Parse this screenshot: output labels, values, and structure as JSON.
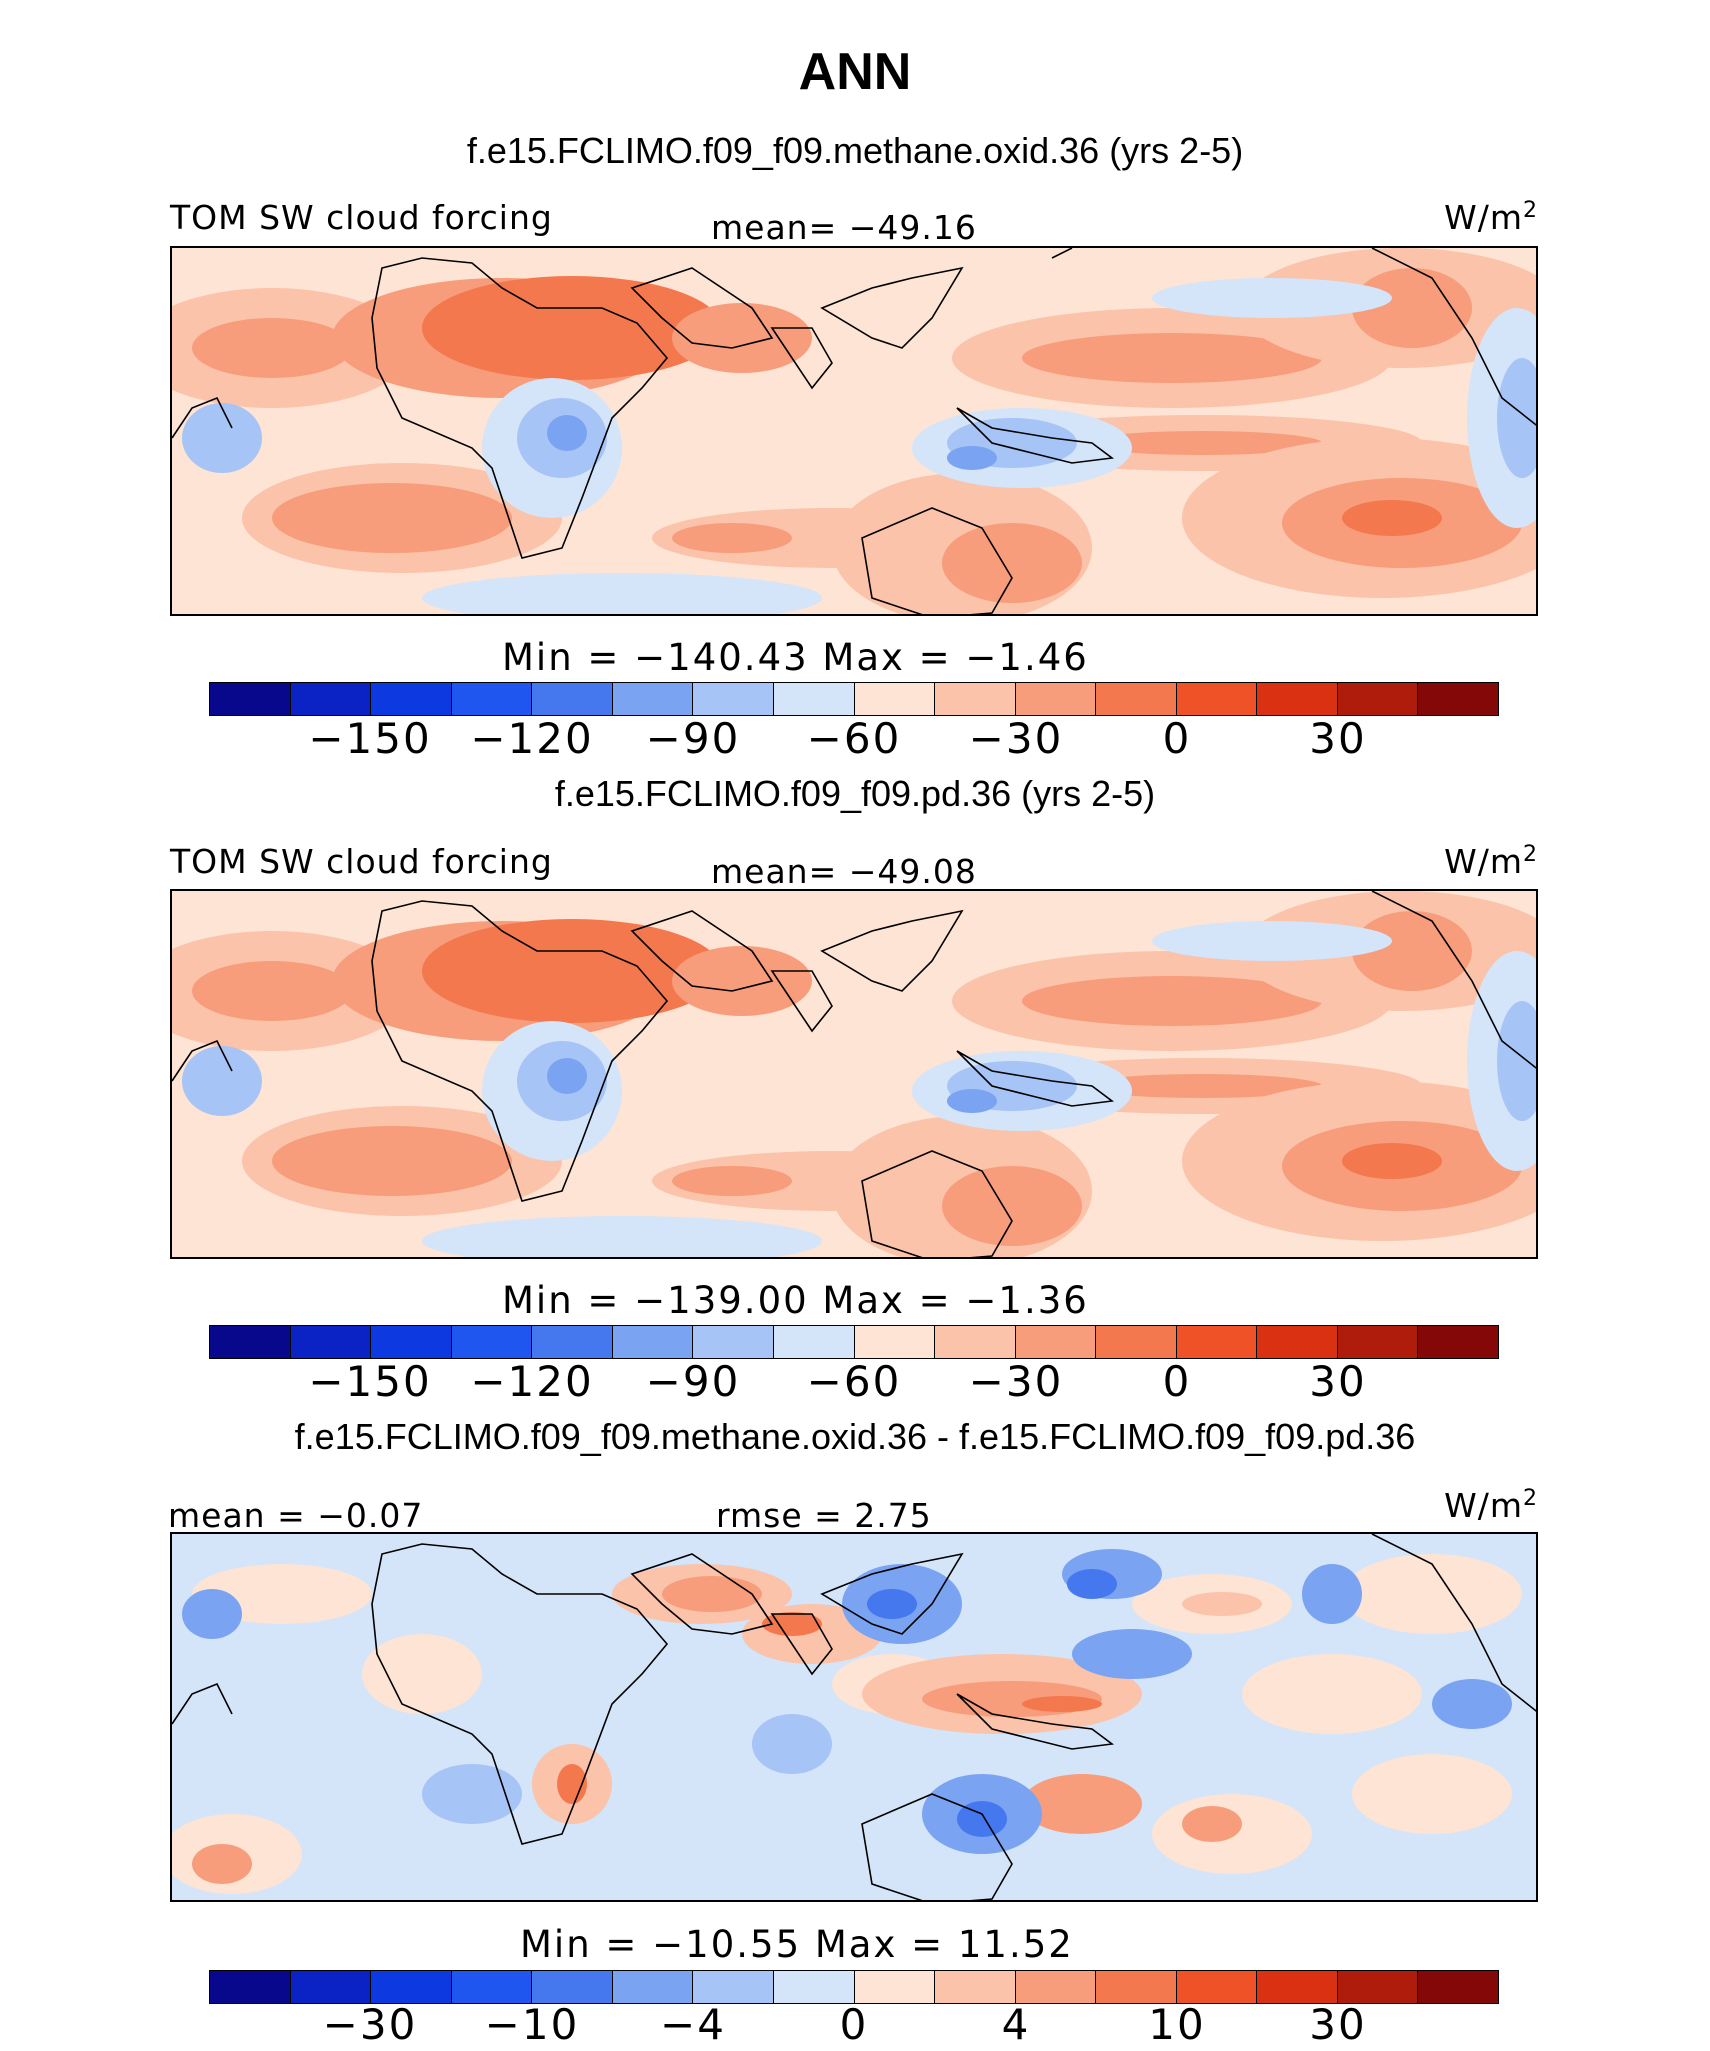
{
  "title": "ANN",
  "units": "W/m",
  "units_sup": "2",
  "panels": [
    {
      "case_title": "f.e15.FCLIMO.f09_f09.methane.oxid.36 (yrs 2-5)",
      "left_label": "TOM SW cloud forcing",
      "center_label": "mean= −49.16",
      "min_max": "Min = −140.43 Max = −1.46",
      "colorbar_ticks": [
        "−150",
        "−120",
        "−90",
        "−60",
        "−30",
        "0",
        "30"
      ]
    },
    {
      "case_title": "f.e15.FCLIMO.f09_f09.pd.36 (yrs 2-5)",
      "left_label": "TOM SW cloud forcing",
      "center_label": "mean= −49.08",
      "min_max": "Min = −139.00 Max = −1.36",
      "colorbar_ticks": [
        "−150",
        "−120",
        "−90",
        "−60",
        "−30",
        "0",
        "30"
      ]
    },
    {
      "case_title": "f.e15.FCLIMO.f09_f09.methane.oxid.36 - f.e15.FCLIMO.f09_f09.pd.36",
      "left_label": "mean = −0.07",
      "center_label": "rmse = 2.75",
      "min_max": "Min = −10.55 Max = 11.52",
      "colorbar_ticks": [
        "−30",
        "−10",
        "−4",
        "0",
        "4",
        "10",
        "30"
      ]
    }
  ],
  "chart_data": [
    {
      "type": "heatmap",
      "title": "f.e15.FCLIMO.f09_f09.methane.oxid.36 (yrs 2-5)",
      "variable": "TOM SW cloud forcing",
      "units": "W/m2",
      "mean": -49.16,
      "min": -140.43,
      "max": -1.46,
      "levels": [
        -165,
        -150,
        -135,
        -120,
        -105,
        -90,
        -75,
        -60,
        -45,
        -30,
        -15,
        0,
        15,
        30,
        45
      ],
      "colors": [
        "#08088c",
        "#0b23c4",
        "#0d3ae0",
        "#1f56f0",
        "#4578ee",
        "#7aa3f2",
        "#a7c4f6",
        "#d4e4f9",
        "#fde4d4",
        "#fbc3aa",
        "#f79d7b",
        "#f4784d",
        "#f05228",
        "#d93111",
        "#b01c0b",
        "#840808"
      ]
    },
    {
      "type": "heatmap",
      "title": "f.e15.FCLIMO.f09_f09.pd.36 (yrs 2-5)",
      "variable": "TOM SW cloud forcing",
      "units": "W/m2",
      "mean": -49.08,
      "min": -139.0,
      "max": -1.36,
      "levels": [
        -165,
        -150,
        -135,
        -120,
        -105,
        -90,
        -75,
        -60,
        -45,
        -30,
        -15,
        0,
        15,
        30,
        45
      ],
      "colors": [
        "#08088c",
        "#0b23c4",
        "#0d3ae0",
        "#1f56f0",
        "#4578ee",
        "#7aa3f2",
        "#a7c4f6",
        "#d4e4f9",
        "#fde4d4",
        "#fbc3aa",
        "#f79d7b",
        "#f4784d",
        "#f05228",
        "#d93111",
        "#b01c0b",
        "#840808"
      ]
    },
    {
      "type": "heatmap",
      "title": "f.e15.FCLIMO.f09_f09.methane.oxid.36 - f.e15.FCLIMO.f09_f09.pd.36",
      "units": "W/m2",
      "mean": -0.07,
      "rmse": 2.75,
      "min": -10.55,
      "max": 11.52,
      "levels": [
        -40,
        -30,
        -20,
        -10,
        -8,
        -4,
        -2,
        0,
        2,
        4,
        8,
        10,
        20,
        30,
        40
      ],
      "colors": [
        "#08088c",
        "#0b23c4",
        "#0d3ae0",
        "#1f56f0",
        "#4578ee",
        "#7aa3f2",
        "#a7c4f6",
        "#d4e4f9",
        "#fde4d4",
        "#fbc3aa",
        "#f79d7b",
        "#f4784d",
        "#f05228",
        "#d93111",
        "#b01c0b",
        "#840808"
      ]
    }
  ]
}
